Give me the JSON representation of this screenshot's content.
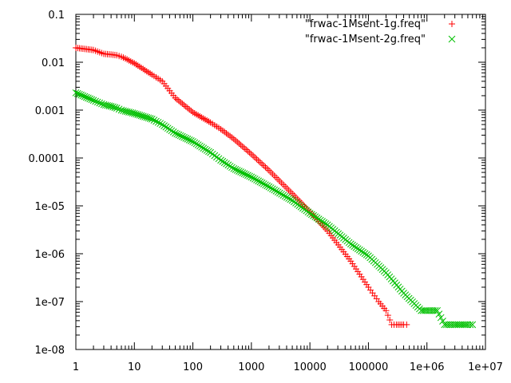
{
  "chart_data": {
    "type": "scatter",
    "title": "",
    "xlabel": "",
    "ylabel": "",
    "x_scale": "log",
    "y_scale": "log",
    "xlim": [
      1,
      10000000
    ],
    "ylim": [
      1e-08,
      0.1
    ],
    "grid": false,
    "legend_position": "top-right",
    "x_ticks": [
      {
        "value": 1,
        "label": "1"
      },
      {
        "value": 10,
        "label": "10"
      },
      {
        "value": 100,
        "label": "100"
      },
      {
        "value": 1000,
        "label": "1000"
      },
      {
        "value": 10000,
        "label": "10000"
      },
      {
        "value": 100000,
        "label": "100000"
      },
      {
        "value": 1000000,
        "label": "1e+06"
      },
      {
        "value": 10000000,
        "label": "1e+07"
      }
    ],
    "y_ticks": [
      {
        "value": 0.1,
        "label": "0.1"
      },
      {
        "value": 0.01,
        "label": "0.01"
      },
      {
        "value": 0.001,
        "label": "0.001"
      },
      {
        "value": 0.0001,
        "label": "0.0001"
      },
      {
        "value": 1e-05,
        "label": "1e-05"
      },
      {
        "value": 1e-06,
        "label": "1e-06"
      },
      {
        "value": 1e-07,
        "label": "1e-07"
      },
      {
        "value": 1e-08,
        "label": "1e-08"
      }
    ],
    "series": [
      {
        "name": "\"frwac-1Msent-1g.freq\"",
        "marker": "plus",
        "color": "#ff0000",
        "points": [
          [
            1,
            0.02
          ],
          [
            2,
            0.018
          ],
          [
            3,
            0.015
          ],
          [
            4,
            0.0145
          ],
          [
            5,
            0.014
          ],
          [
            6,
            0.013
          ],
          [
            7,
            0.012
          ],
          [
            10,
            0.0095
          ],
          [
            20,
            0.0055
          ],
          [
            30,
            0.004
          ],
          [
            50,
            0.0018
          ],
          [
            100,
            0.0009
          ],
          [
            200,
            0.00055
          ],
          [
            300,
            0.0004
          ],
          [
            500,
            0.00025
          ],
          [
            1000,
            0.00012
          ],
          [
            2000,
            5.5e-05
          ],
          [
            5000,
            1.8e-05
          ],
          [
            10000,
            7.5e-06
          ],
          [
            20000,
            3e-06
          ],
          [
            50000,
            7e-07
          ],
          [
            100000,
            2e-07
          ],
          [
            150000,
            1e-07
          ],
          [
            200000,
            6.5e-08
          ],
          [
            250000,
            3.3e-08
          ],
          [
            300000,
            3.3e-08
          ],
          [
            400000,
            3.3e-08
          ],
          [
            450000,
            3.3e-08
          ]
        ]
      },
      {
        "name": "\"frwac-1Msent-2g.freq\"",
        "marker": "cross",
        "color": "#00c000",
        "points": [
          [
            1,
            0.0023
          ],
          [
            2,
            0.0016
          ],
          [
            3,
            0.0013
          ],
          [
            4,
            0.0012
          ],
          [
            5,
            0.0011
          ],
          [
            6,
            0.001
          ],
          [
            7,
            0.00095
          ],
          [
            10,
            0.00085
          ],
          [
            20,
            0.00065
          ],
          [
            30,
            0.0005
          ],
          [
            50,
            0.00033
          ],
          [
            100,
            0.00022
          ],
          [
            200,
            0.00013
          ],
          [
            300,
            9e-05
          ],
          [
            500,
            6e-05
          ],
          [
            1000,
            4e-05
          ],
          [
            2000,
            2.5e-05
          ],
          [
            5000,
            1.3e-05
          ],
          [
            10000,
            7e-06
          ],
          [
            20000,
            4e-06
          ],
          [
            50000,
            1.6e-06
          ],
          [
            100000,
            9e-07
          ],
          [
            200000,
            4e-07
          ],
          [
            400000,
            1.5e-07
          ],
          [
            800000,
            6.5e-08
          ],
          [
            1000000,
            6.5e-08
          ],
          [
            1500000,
            6.5e-08
          ],
          [
            2000000,
            3.3e-08
          ],
          [
            3000000,
            3.3e-08
          ],
          [
            5000000,
            3.3e-08
          ],
          [
            6000000,
            3.3e-08
          ]
        ]
      }
    ]
  }
}
